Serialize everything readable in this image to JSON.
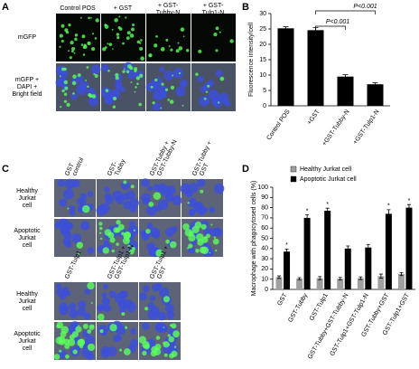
{
  "panel_a": {
    "letter": "A",
    "columns": [
      [
        "Control POS"
      ],
      [
        "+ GST"
      ],
      [
        "+ GST-",
        "Tubby-N"
      ],
      [
        "+ GST-",
        "Tulp1-N"
      ]
    ],
    "rows": [
      [
        "mGFP"
      ],
      [
        "mGFP +",
        "DAPI +",
        "Bright field"
      ]
    ]
  },
  "panel_c": {
    "letter": "C",
    "top_columns": [
      [
        "GST",
        "control"
      ],
      [
        "GST-",
        "Tubby"
      ],
      [
        "GST-Tubby +",
        "GST-Tubby-N"
      ],
      [
        "GST-Tubby +",
        "GST"
      ]
    ],
    "bottom_columns": [
      [
        "GST-Tulp1"
      ],
      [
        "GST-Tulp1 +",
        "GST-Tulp1-N"
      ],
      [
        "GST-Tulp1 +",
        "GST"
      ]
    ],
    "rows": [
      [
        "Healthy",
        "Jurkat",
        "cell"
      ],
      [
        "Apoptotic",
        "Jurkat",
        "cell"
      ]
    ]
  },
  "chart_data": [
    {
      "type": "bar",
      "letter": "B",
      "ylabel": "Fluorescence intensity/cell",
      "categories": [
        "Control POS",
        "+GST",
        "+GST-Tubby-N",
        "+GST-Tulp1-N"
      ],
      "values": [
        25.2,
        24.6,
        9.5,
        7
      ],
      "errors": [
        0.5,
        0.8,
        0.6,
        0.5
      ],
      "color": "#000000",
      "ylim": [
        0,
        30
      ],
      "yticks": [
        0,
        5,
        10,
        15,
        20,
        25,
        30
      ],
      "annotations": [
        "P<0.001",
        "P<0.001"
      ]
    },
    {
      "type": "grouped_bar",
      "letter": "D",
      "ylabel": "Macrophage with phagocytosed cells (%)",
      "categories": [
        "GST",
        "GST-Tubby",
        "GST-Tulp1",
        "GST-Tubby+GST-Tubby-N",
        "GST-Tulp1+GST-Tulp1-N",
        "GST-Tubby+GST",
        "GST-Tulp1+GST"
      ],
      "series": [
        {
          "name": "Healthy Jurkat cell",
          "color": "#a0a0a0",
          "values": [
            12,
            10.5,
            11,
            10.5,
            11,
            13,
            15
          ],
          "errors": [
            1.2,
            1,
            1.5,
            1.2,
            1.3,
            2,
            1.5
          ]
        },
        {
          "name": "Apoptotic Jurkat cell",
          "color": "#000000",
          "values": [
            37,
            70,
            77,
            40,
            41,
            74,
            80
          ],
          "errors": [
            2.5,
            3,
            2.5,
            2.5,
            3,
            4,
            3
          ]
        }
      ],
      "stars": [
        "*",
        "*",
        "*",
        null,
        null,
        "*",
        "*"
      ],
      "ylim": [
        0,
        100
      ],
      "yticks": [
        0,
        10,
        20,
        30,
        40,
        50,
        60,
        70,
        80,
        90,
        100
      ],
      "legend": "top-left"
    }
  ]
}
